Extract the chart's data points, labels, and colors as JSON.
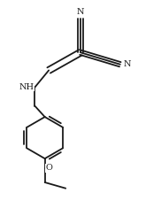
{
  "bg_color": "#ffffff",
  "line_color": "#1a1a1a",
  "line_width": 1.3,
  "font_size": 7.0,
  "font_family": "DejaVu Serif",
  "figsize": [
    1.82,
    2.44
  ],
  "dpi": 100,
  "xlim": [
    0.1,
    0.9
  ],
  "ylim": [
    0.02,
    1.0
  ]
}
